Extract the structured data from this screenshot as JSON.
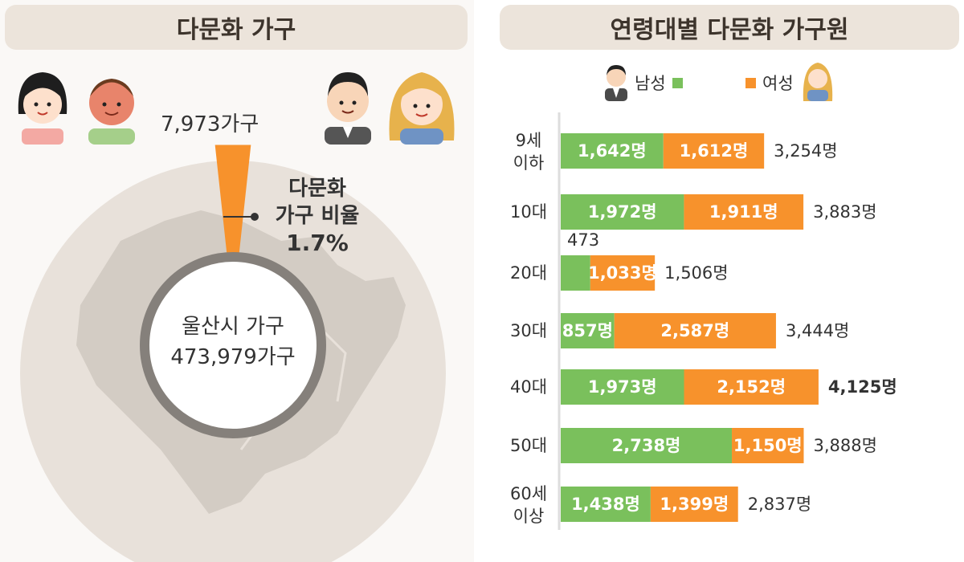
{
  "left": {
    "title": "다문화 가구",
    "multicultural_households": "7,973가구",
    "ratio_label_line1": "다문화",
    "ratio_label_line2": "가구 비율",
    "ratio_value": "1.7%",
    "city_label": "울산시 가구",
    "city_households": "473,979가구",
    "ratio_fraction": 0.017
  },
  "right": {
    "title": "연령대별 다문화 가구원",
    "legend": [
      {
        "label": "남성",
        "color": "#7ac05c"
      },
      {
        "label": "여성",
        "color": "#f7922c"
      }
    ]
  },
  "colors": {
    "male": "#7ac05c",
    "female": "#f7922c",
    "ring": "#85807b",
    "map_disc": "#e8e1da",
    "map_region": "#d3ccc4",
    "title_bg": "#ece4db"
  },
  "chart_data": {
    "type": "bar",
    "orientation": "horizontal",
    "stacked": true,
    "categories": [
      "9세\n이하",
      "10대",
      "20대",
      "30대",
      "40대",
      "50대",
      "60세\n이상"
    ],
    "series": [
      {
        "name": "남성",
        "values": [
          1642,
          1972,
          473,
          857,
          1973,
          2738,
          1438
        ],
        "labels": [
          "1,642명",
          "1,972명",
          "473",
          "857명",
          "1,973명",
          "2,738명",
          "1,438명"
        ]
      },
      {
        "name": "여성",
        "values": [
          1612,
          1911,
          1033,
          2587,
          2152,
          1150,
          1399
        ],
        "labels": [
          "1,612명",
          "1,911명",
          "1,033명",
          "2,587명",
          "2,152명",
          "1,150명",
          "1,399명"
        ]
      }
    ],
    "totals": [
      3254,
      3883,
      1506,
      3444,
      4125,
      3888,
      2837
    ],
    "total_labels": [
      "3,254명",
      "3,883명",
      "1,506명",
      "3,444명",
      "4,125명",
      "3,888명",
      "2,837명"
    ],
    "highlight_total_index": 4
  }
}
